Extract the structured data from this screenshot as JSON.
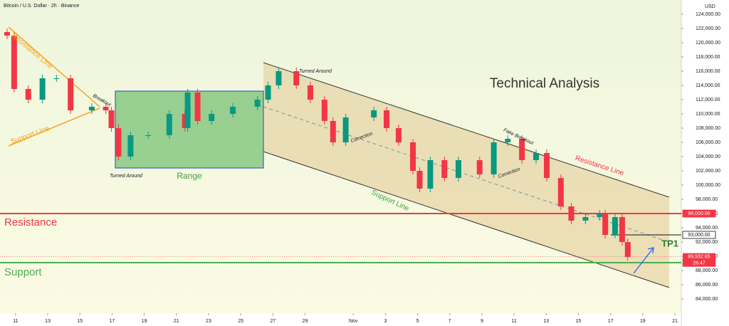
{
  "chart_data": {
    "type": "candlestick",
    "title": "Bitcoin / U.S. Dollar · 2h · Binance",
    "currency": "USD",
    "up_color": "#089981",
    "down_color": "#f23645",
    "x": [
      -0.53,
      -0.09,
      0.79,
      1.67,
      2.54,
      3.42,
      4.74,
      5.61,
      5.96,
      6.4,
      7.15,
      8.25,
      9.56,
      10.53,
      10.7,
      11.32,
      12.19,
      13.51,
      15.04,
      15.7,
      16.36,
      17.46,
      18.33,
      19.21,
      19.74,
      20.53,
      22.28,
      23.07,
      23.82,
      24.71,
      25.13,
      25.79,
      26.67,
      27.54,
      28.86,
      29.74,
      30.61,
      31.49,
      32.37,
      33.03,
      33.91,
      34.56,
      35.44,
      36.32,
      36.67,
      37.28,
      37.72,
      38.07
    ],
    "open": [
      121500,
      121000,
      113500,
      112000,
      115000,
      115000,
      110500,
      111000,
      110500,
      108000,
      104000,
      107000,
      107000,
      110000,
      108000,
      113000,
      109000,
      110000,
      111000,
      112000,
      114000,
      116000,
      114000,
      112000,
      109000,
      106000,
      109500,
      110500,
      108000,
      106000,
      102000,
      99500,
      103500,
      101000,
      103500,
      101500,
      106000,
      106500,
      103500,
      104500,
      101000,
      97000,
      95000,
      95500,
      96000,
      93000,
      95500,
      92000
    ],
    "high": [
      122000,
      121500,
      114000,
      115500,
      115500,
      115500,
      111500,
      111500,
      111000,
      108500,
      107500,
      107500,
      110500,
      110500,
      113500,
      113500,
      110500,
      111500,
      112500,
      114500,
      116500,
      116500,
      114500,
      112500,
      109500,
      110000,
      111000,
      111000,
      108500,
      106500,
      102500,
      104000,
      104000,
      104000,
      104000,
      106500,
      107000,
      107000,
      105000,
      105000,
      101500,
      97500,
      96000,
      96500,
      96500,
      96000,
      96000,
      92500
    ],
    "low": [
      120500,
      113000,
      111500,
      111500,
      114500,
      110000,
      110000,
      110000,
      107500,
      103500,
      103500,
      106500,
      106500,
      107500,
      107500,
      108500,
      108500,
      109500,
      110500,
      111500,
      113500,
      113500,
      111500,
      108500,
      105500,
      105500,
      109000,
      107500,
      105500,
      101500,
      99000,
      99000,
      100500,
      100500,
      101000,
      101000,
      105500,
      103000,
      103000,
      100500,
      96500,
      94500,
      94500,
      95000,
      92500,
      92500,
      91500,
      89400
    ],
    "close": [
      121000,
      113500,
      112000,
      115000,
      115000,
      110500,
      111000,
      110500,
      108000,
      104000,
      107000,
      107000,
      110000,
      108000,
      113000,
      109000,
      110000,
      111000,
      112000,
      114000,
      116000,
      114000,
      112000,
      109000,
      106000,
      109500,
      110500,
      108000,
      106000,
      102000,
      99500,
      103500,
      101000,
      103500,
      101500,
      106000,
      106500,
      103500,
      104500,
      101000,
      97000,
      95000,
      95500,
      96000,
      93000,
      95500,
      92000,
      89900
    ],
    "xlim": [
      -0.97,
      41.4
    ],
    "xticks": [
      {
        "value": 0,
        "label": "11"
      },
      {
        "value": 2,
        "label": "13"
      },
      {
        "value": 4,
        "label": "15"
      },
      {
        "value": 6,
        "label": "17"
      },
      {
        "value": 8,
        "label": "19"
      },
      {
        "value": 10,
        "label": "21"
      },
      {
        "value": 12,
        "label": "23"
      },
      {
        "value": 14,
        "label": "25"
      },
      {
        "value": 16,
        "label": "27"
      },
      {
        "value": 18,
        "label": "29"
      },
      {
        "value": 21,
        "label": "Nov"
      },
      {
        "value": 23,
        "label": "3"
      },
      {
        "value": 25,
        "label": "5"
      },
      {
        "value": 27,
        "label": "7"
      },
      {
        "value": 29,
        "label": "9"
      },
      {
        "value": 31,
        "label": "11"
      },
      {
        "value": 33,
        "label": "13"
      },
      {
        "value": 35,
        "label": "15"
      },
      {
        "value": 37,
        "label": "17"
      },
      {
        "value": 39,
        "label": "19"
      },
      {
        "value": 41,
        "label": "21"
      }
    ],
    "ylim": [
      82000,
      126000
    ],
    "yticks": [
      {
        "value": 84000,
        "label": "84,000.00"
      },
      {
        "value": 86000,
        "label": "86,000.00"
      },
      {
        "value": 88000,
        "label": "88,000.00"
      },
      {
        "value": 90000,
        "label": "90,000.00"
      },
      {
        "value": 92000,
        "label": "92,000.00"
      },
      {
        "value": 94000,
        "label": "94,000.00"
      },
      {
        "value": 96000,
        "label": "96,000.00"
      },
      {
        "value": 98000,
        "label": "98,000.00"
      },
      {
        "value": 100000,
        "label": "100,000.00"
      },
      {
        "value": 102000,
        "label": "102,000.00"
      },
      {
        "value": 104000,
        "label": "104,000.00"
      },
      {
        "value": 106000,
        "label": "106,000.00"
      },
      {
        "value": 108000,
        "label": "108,000.00"
      },
      {
        "value": 110000,
        "label": "110,000.00"
      },
      {
        "value": 112000,
        "label": "112,000.00"
      },
      {
        "value": 114000,
        "label": "114,000.00"
      },
      {
        "value": 116000,
        "label": "116,000.00"
      },
      {
        "value": 118000,
        "label": "118,000.00"
      },
      {
        "value": 120000,
        "label": "120,000.00"
      },
      {
        "value": 122000,
        "label": "122,000.00"
      },
      {
        "value": 124000,
        "label": "124,000.00"
      }
    ],
    "levels": [
      {
        "name": "Resistance",
        "value": 96000,
        "label": "96,000.00",
        "color": "#f23645"
      },
      {
        "name": "Support",
        "value": 89100,
        "label": "89,100.00",
        "color": "#4caf50"
      }
    ],
    "target": {
      "name": "TP1",
      "value": 93000,
      "label": "93,000.00"
    },
    "last_price": {
      "value": 89932.85,
      "label": "89,932.85",
      "countdown": "26:47"
    },
    "annotations": [
      "Technical Analysis",
      "Resistance Line",
      "Support Line",
      "Breakout",
      "Turned Around",
      "Range",
      "Turned Around",
      "Correction",
      "Support Line",
      "Correction",
      "Fake Breakout",
      "Resistance Line"
    ]
  }
}
